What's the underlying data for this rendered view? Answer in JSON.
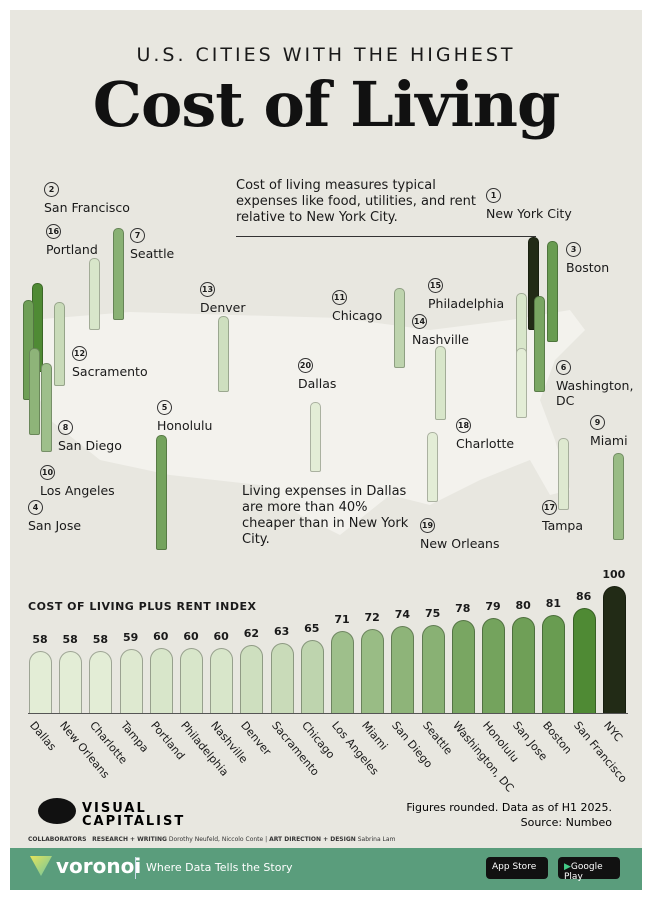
{
  "header": {
    "subtitle": "U.S. CITIES WITH THE HIGHEST",
    "title": "Cost of Living"
  },
  "notes": {
    "definition": "Cost of living measures typical expenses like food, utilities, and rent relative to New York City.",
    "dallas": "Living expenses in Dallas are more than 40% cheaper than in New York City."
  },
  "map_cities": [
    {
      "rank": 1,
      "name": "New York City",
      "value": 100
    },
    {
      "rank": 2,
      "name": "San Francisco",
      "value": 86
    },
    {
      "rank": 3,
      "name": "Boston",
      "value": 81
    },
    {
      "rank": 4,
      "name": "San Jose",
      "value": 80
    },
    {
      "rank": 5,
      "name": "Honolulu",
      "value": 79
    },
    {
      "rank": 6,
      "name": "Washington, DC",
      "value": 78
    },
    {
      "rank": 7,
      "name": "Seattle",
      "value": 75
    },
    {
      "rank": 8,
      "name": "San Diego",
      "value": 74
    },
    {
      "rank": 9,
      "name": "Miami",
      "value": 72
    },
    {
      "rank": 10,
      "name": "Los Angeles",
      "value": 71
    },
    {
      "rank": 11,
      "name": "Chicago",
      "value": 65
    },
    {
      "rank": 12,
      "name": "Sacramento",
      "value": 63
    },
    {
      "rank": 13,
      "name": "Denver",
      "value": 62
    },
    {
      "rank": 14,
      "name": "Nashville",
      "value": 60
    },
    {
      "rank": 15,
      "name": "Philadelphia",
      "value": 60
    },
    {
      "rank": 16,
      "name": "Portland",
      "value": 60
    },
    {
      "rank": 17,
      "name": "Tampa",
      "value": 59
    },
    {
      "rank": 18,
      "name": "Charlotte",
      "value": 58
    },
    {
      "rank": 19,
      "name": "New Orleans",
      "value": 58
    },
    {
      "rank": 20,
      "name": "Dallas",
      "value": 58
    }
  ],
  "chart_data": {
    "type": "bar",
    "title": "COST OF LIVING PLUS RENT INDEX",
    "categories": [
      "Dallas",
      "New Orleans",
      "Charlotte",
      "Tampa",
      "Portland",
      "Philadelphia",
      "Nashville",
      "Denver",
      "Sacramento",
      "Chicago",
      "Los Angeles",
      "Miami",
      "San Diego",
      "Seattle",
      "Washington, DC",
      "Honolulu",
      "San Jose",
      "Boston",
      "San Francisco",
      "NYC"
    ],
    "values": [
      58,
      58,
      58,
      59,
      60,
      60,
      60,
      62,
      63,
      65,
      71,
      72,
      74,
      75,
      78,
      79,
      80,
      81,
      86,
      100
    ],
    "colors": {
      "low": "#e3edd6",
      "high": "#4f8a34",
      "top": "#222b16"
    }
  },
  "footer": {
    "source_note": "Figures rounded. Data as of H1 2025.",
    "source": "Source: Numbeo",
    "brand": "VISUAL CAPITALIST",
    "collaborators": "COLLABORATORS",
    "research_label": "RESEARCH + WRITING",
    "research": "Dorothy Neufeld, Niccolo Conte",
    "design_label": "ART DIRECTION + DESIGN",
    "design": "Sabrina Lam",
    "voronoi": "voronoi",
    "tagline": "Where Data Tells the Story",
    "app_store": "App Store",
    "google_play": "Google Play"
  }
}
